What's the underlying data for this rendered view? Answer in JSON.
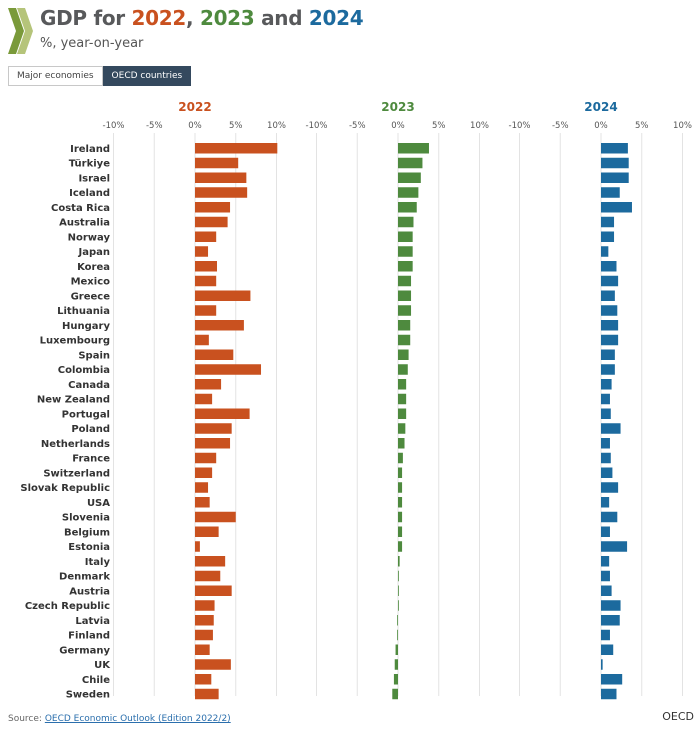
{
  "header": {
    "title_prefix": "GDP for ",
    "year1": "2022",
    "sep1": ", ",
    "year2": "2023",
    "sep2": " and ",
    "year3": "2024",
    "subtitle": "%, year-on-year"
  },
  "tabs": [
    {
      "label": "Major economies",
      "active": false
    },
    {
      "label": "OECD countries",
      "active": true
    }
  ],
  "footer": {
    "source_prefix": "Source: ",
    "source_link": "OECD Economic Outlook (Edition 2022/2)",
    "logo_text": "OECD"
  },
  "colors": {
    "y2022": "#c9511f",
    "y2023": "#4e8a3e",
    "y2024": "#1c6a9e",
    "title": "#58595b"
  },
  "chart_data": {
    "type": "bar",
    "orientation": "horizontal",
    "panels": [
      "2022",
      "2023",
      "2024"
    ],
    "x_ticks": [
      "-10%",
      "-5%",
      "0%",
      "5%",
      "10%"
    ],
    "xlim": [
      -10,
      10
    ],
    "grid": true,
    "categories": [
      "Ireland",
      "Türkiye",
      "Israel",
      "Iceland",
      "Costa Rica",
      "Australia",
      "Norway",
      "Japan",
      "Korea",
      "Mexico",
      "Greece",
      "Lithuania",
      "Hungary",
      "Luxembourg",
      "Spain",
      "Colombia",
      "Canada",
      "New Zealand",
      "Portugal",
      "Poland",
      "Netherlands",
      "France",
      "Switzerland",
      "Slovak Republic",
      "USA",
      "Slovenia",
      "Belgium",
      "Estonia",
      "Italy",
      "Denmark",
      "Austria",
      "Czech Republic",
      "Latvia",
      "Finland",
      "Germany",
      "UK",
      "Chile",
      "Sweden"
    ],
    "series": [
      {
        "name": "2022",
        "values": [
          10.1,
          5.3,
          6.3,
          6.4,
          4.3,
          4.0,
          2.6,
          1.6,
          2.7,
          2.6,
          6.8,
          2.6,
          6.0,
          1.7,
          4.7,
          8.1,
          3.2,
          2.1,
          6.7,
          4.5,
          4.3,
          2.6,
          2.1,
          1.6,
          1.8,
          5.0,
          2.9,
          0.6,
          3.7,
          3.1,
          4.5,
          2.4,
          2.3,
          2.2,
          1.8,
          4.4,
          2.0,
          2.9
        ]
      },
      {
        "name": "2023",
        "values": [
          3.8,
          3.0,
          2.8,
          2.5,
          2.3,
          1.9,
          1.8,
          1.8,
          1.8,
          1.6,
          1.6,
          1.6,
          1.5,
          1.5,
          1.3,
          1.2,
          1.0,
          1.0,
          1.0,
          0.9,
          0.8,
          0.6,
          0.5,
          0.5,
          0.5,
          0.5,
          0.5,
          0.5,
          0.2,
          0.1,
          0.1,
          0.1,
          -0.1,
          -0.1,
          -0.3,
          -0.4,
          -0.5,
          -0.7
        ]
      },
      {
        "name": "2024",
        "values": [
          3.3,
          3.4,
          3.4,
          2.3,
          3.8,
          1.6,
          1.6,
          0.9,
          1.9,
          2.1,
          1.7,
          2.0,
          2.1,
          2.1,
          1.7,
          1.7,
          1.3,
          1.1,
          1.2,
          2.4,
          1.1,
          1.2,
          1.4,
          2.1,
          1.0,
          2.0,
          1.1,
          3.2,
          1.0,
          1.1,
          1.3,
          2.4,
          2.3,
          1.1,
          1.5,
          0.2,
          2.6,
          1.9
        ]
      }
    ]
  }
}
